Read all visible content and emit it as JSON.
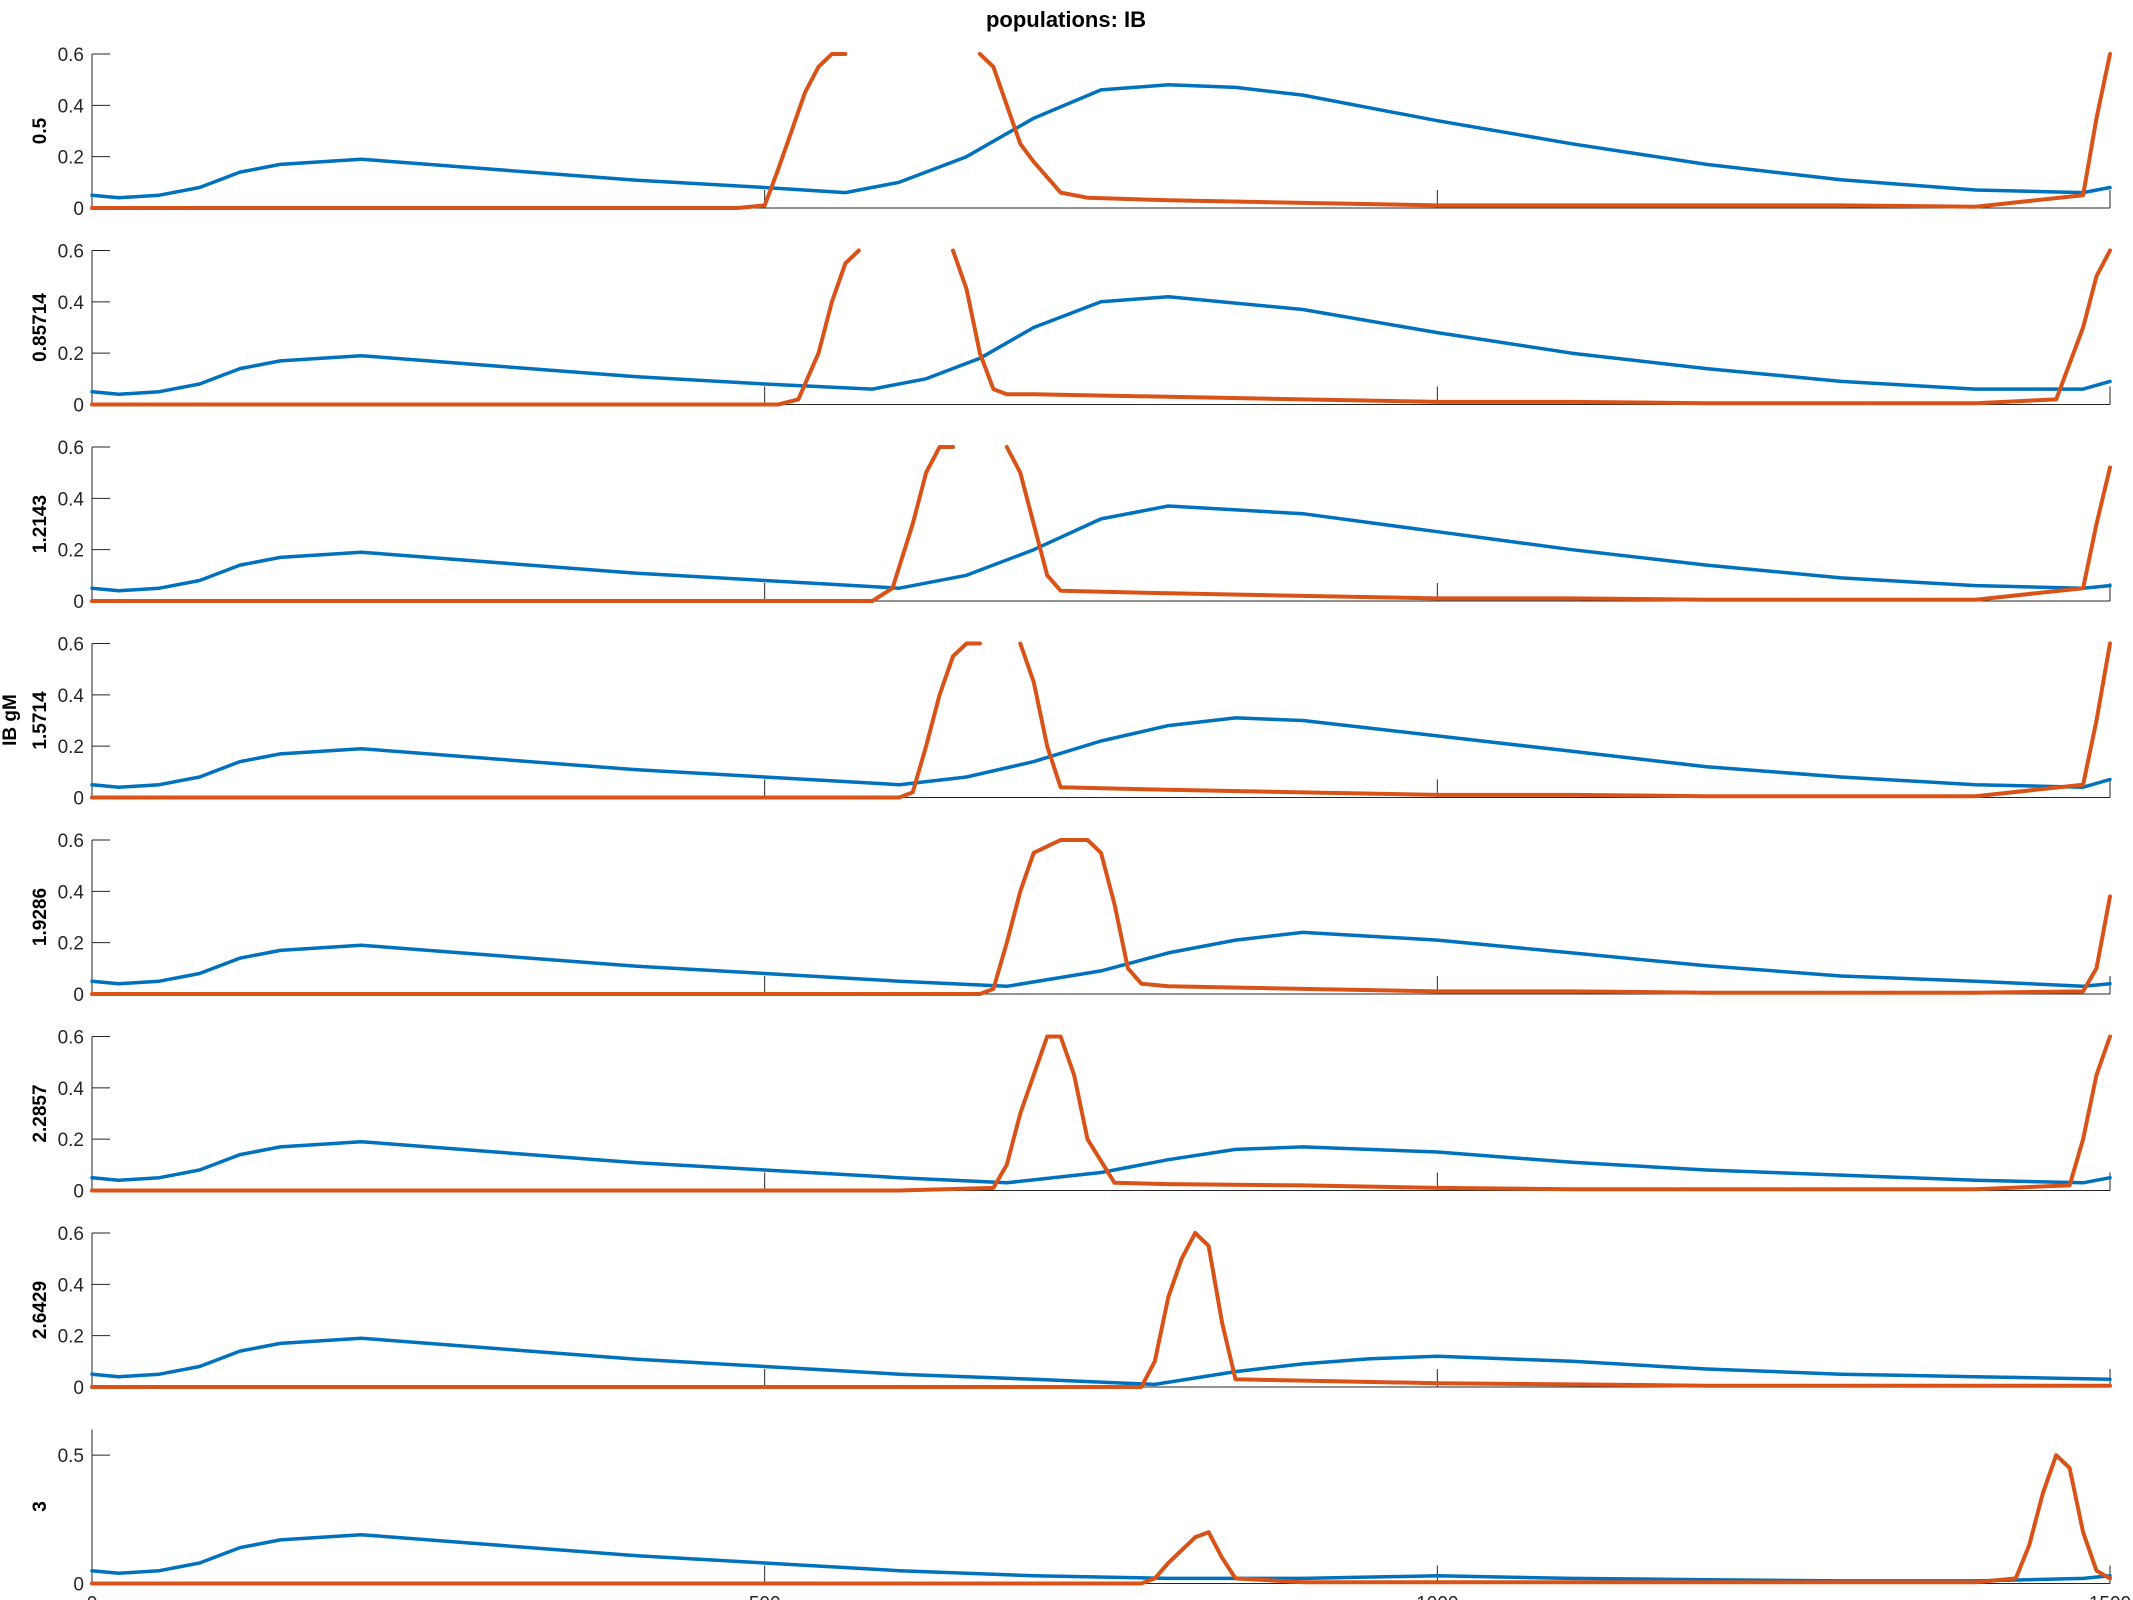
{
  "chart_data": {
    "type": "line",
    "title": "populations: IB",
    "group_ylabel": "IB gM",
    "xlim": [
      0,
      1500
    ],
    "x_ticks": [
      0,
      500,
      1000,
      1500
    ],
    "grid": false,
    "legend": "none",
    "colors": {
      "series_1": "#0072BD",
      "series_2": "#D95319",
      "axis": "#262626"
    },
    "panels": [
      {
        "label": "0.5",
        "ylim": [
          0,
          0.6
        ],
        "y_ticks": [
          0,
          0.2,
          0.4,
          0.6
        ],
        "series": [
          {
            "x": [
              0,
              20,
              50,
              80,
              110,
              140,
              200,
              300,
              400,
              500,
              560,
              600,
              650,
              700,
              750,
              800,
              850,
              900,
              1000,
              1100,
              1200,
              1300,
              1400,
              1480,
              1500
            ],
            "y": [
              0.05,
              0.04,
              0.05,
              0.08,
              0.14,
              0.17,
              0.19,
              0.15,
              0.11,
              0.08,
              0.06,
              0.1,
              0.2,
              0.35,
              0.46,
              0.48,
              0.47,
              0.44,
              0.34,
              0.25,
              0.17,
              0.11,
              0.07,
              0.06,
              0.08
            ]
          },
          {
            "x": [
              0,
              100,
              200,
              300,
              400,
              480,
              500,
              510,
              520,
              530,
              540,
              550,
              560,
              600,
              640,
              660,
              670,
              680,
              690,
              700,
              710,
              720,
              740,
              800,
              900,
              1000,
              1100,
              1200,
              1300,
              1400,
              1480,
              1490,
              1500
            ],
            "y": [
              0,
              0,
              0,
              0,
              0,
              0,
              0.01,
              0.15,
              0.3,
              0.45,
              0.55,
              0.6,
              0.6,
              null,
              null,
              0.6,
              0.55,
              0.4,
              0.25,
              0.18,
              0.12,
              0.06,
              0.04,
              0.03,
              0.02,
              0.01,
              0.01,
              0.01,
              0.01,
              0.005,
              0.05,
              0.35,
              0.6
            ]
          }
        ]
      },
      {
        "label": "0.85714",
        "ylim": [
          0,
          0.6
        ],
        "y_ticks": [
          0,
          0.2,
          0.4,
          0.6
        ],
        "series": [
          {
            "x": [
              0,
              20,
              50,
              80,
              110,
              140,
              200,
              300,
              400,
              500,
              580,
              620,
              660,
              700,
              750,
              800,
              900,
              1000,
              1100,
              1200,
              1300,
              1400,
              1480,
              1500
            ],
            "y": [
              0.05,
              0.04,
              0.05,
              0.08,
              0.14,
              0.17,
              0.19,
              0.15,
              0.11,
              0.08,
              0.06,
              0.1,
              0.18,
              0.3,
              0.4,
              0.42,
              0.37,
              0.28,
              0.2,
              0.14,
              0.09,
              0.06,
              0.06,
              0.09
            ]
          },
          {
            "x": [
              0,
              100,
              200,
              300,
              400,
              510,
              525,
              540,
              550,
              560,
              570,
              600,
              640,
              650,
              660,
              670,
              680,
              700,
              800,
              900,
              1000,
              1100,
              1200,
              1300,
              1400,
              1460,
              1480,
              1490,
              1500
            ],
            "y": [
              0,
              0,
              0,
              0,
              0,
              0,
              0.02,
              0.2,
              0.4,
              0.55,
              0.6,
              null,
              0.6,
              0.45,
              0.2,
              0.06,
              0.04,
              0.04,
              0.03,
              0.02,
              0.01,
              0.01,
              0.005,
              0.005,
              0.005,
              0.02,
              0.3,
              0.5,
              0.6
            ]
          }
        ]
      },
      {
        "label": "1.2143",
        "ylim": [
          0,
          0.6
        ],
        "y_ticks": [
          0,
          0.2,
          0.4,
          0.6
        ],
        "series": [
          {
            "x": [
              0,
              20,
              50,
              80,
              110,
              140,
              200,
              300,
              400,
              500,
              600,
              650,
              700,
              750,
              800,
              900,
              1000,
              1100,
              1200,
              1300,
              1400,
              1480,
              1500
            ],
            "y": [
              0.05,
              0.04,
              0.05,
              0.08,
              0.14,
              0.17,
              0.19,
              0.15,
              0.11,
              0.08,
              0.05,
              0.1,
              0.2,
              0.32,
              0.37,
              0.34,
              0.27,
              0.2,
              0.14,
              0.09,
              0.06,
              0.05,
              0.06
            ]
          },
          {
            "x": [
              0,
              100,
              200,
              300,
              400,
              500,
              580,
              595,
              610,
              620,
              630,
              640,
              650,
              670,
              680,
              690,
              700,
              710,
              720,
              800,
              900,
              1000,
              1100,
              1200,
              1300,
              1400,
              1480,
              1490,
              1500
            ],
            "y": [
              0,
              0,
              0,
              0,
              0,
              0,
              0,
              0.05,
              0.3,
              0.5,
              0.6,
              0.6,
              null,
              null,
              0.6,
              0.5,
              0.3,
              0.1,
              0.04,
              0.03,
              0.02,
              0.01,
              0.01,
              0.005,
              0.005,
              0.005,
              0.05,
              0.3,
              0.52
            ]
          }
        ]
      },
      {
        "label": "1.5714",
        "ylim": [
          0,
          0.6
        ],
        "y_ticks": [
          0,
          0.2,
          0.4,
          0.6
        ],
        "series": [
          {
            "x": [
              0,
              20,
              50,
              80,
              110,
              140,
              200,
              300,
              400,
              500,
              600,
              650,
              700,
              750,
              800,
              850,
              900,
              1000,
              1100,
              1200,
              1300,
              1400,
              1480,
              1500
            ],
            "y": [
              0.05,
              0.04,
              0.05,
              0.08,
              0.14,
              0.17,
              0.19,
              0.15,
              0.11,
              0.08,
              0.05,
              0.08,
              0.14,
              0.22,
              0.28,
              0.31,
              0.3,
              0.24,
              0.18,
              0.12,
              0.08,
              0.05,
              0.04,
              0.07
            ]
          },
          {
            "x": [
              0,
              100,
              200,
              300,
              400,
              500,
              600,
              610,
              620,
              630,
              640,
              650,
              660,
              680,
              690,
              700,
              710,
              720,
              800,
              900,
              1000,
              1100,
              1200,
              1300,
              1400,
              1480,
              1490,
              1500
            ],
            "y": [
              0,
              0,
              0,
              0,
              0,
              0,
              0,
              0.02,
              0.2,
              0.4,
              0.55,
              0.6,
              0.6,
              null,
              0.6,
              0.45,
              0.2,
              0.04,
              0.03,
              0.02,
              0.01,
              0.01,
              0.005,
              0.005,
              0.005,
              0.05,
              0.3,
              0.6
            ]
          }
        ]
      },
      {
        "label": "1.9286",
        "ylim": [
          0,
          0.6
        ],
        "y_ticks": [
          0,
          0.2,
          0.4,
          0.6
        ],
        "series": [
          {
            "x": [
              0,
              20,
              50,
              80,
              110,
              140,
              200,
              300,
              400,
              500,
              600,
              680,
              750,
              800,
              850,
              900,
              1000,
              1100,
              1200,
              1300,
              1400,
              1480,
              1500
            ],
            "y": [
              0.05,
              0.04,
              0.05,
              0.08,
              0.14,
              0.17,
              0.19,
              0.15,
              0.11,
              0.08,
              0.05,
              0.03,
              0.09,
              0.16,
              0.21,
              0.24,
              0.21,
              0.16,
              0.11,
              0.07,
              0.05,
              0.03,
              0.04
            ]
          },
          {
            "x": [
              0,
              100,
              200,
              300,
              400,
              500,
              600,
              660,
              670,
              680,
              690,
              700,
              720,
              740,
              750,
              760,
              770,
              780,
              800,
              900,
              1000,
              1100,
              1200,
              1300,
              1400,
              1480,
              1490,
              1500
            ],
            "y": [
              0,
              0,
              0,
              0,
              0,
              0,
              0,
              0,
              0.02,
              0.2,
              0.4,
              0.55,
              0.6,
              0.6,
              0.55,
              0.35,
              0.1,
              0.04,
              0.03,
              0.02,
              0.01,
              0.01,
              0.005,
              0.005,
              0.005,
              0.01,
              0.1,
              0.38
            ]
          }
        ]
      },
      {
        "label": "2.2857",
        "ylim": [
          0,
          0.6
        ],
        "y_ticks": [
          0,
          0.2,
          0.4,
          0.6
        ],
        "series": [
          {
            "x": [
              0,
              20,
              50,
              80,
              110,
              140,
              200,
              300,
              400,
              500,
              600,
              680,
              750,
              800,
              850,
              900,
              1000,
              1100,
              1200,
              1300,
              1400,
              1480,
              1500
            ],
            "y": [
              0.05,
              0.04,
              0.05,
              0.08,
              0.14,
              0.17,
              0.19,
              0.15,
              0.11,
              0.08,
              0.05,
              0.03,
              0.07,
              0.12,
              0.16,
              0.17,
              0.15,
              0.11,
              0.08,
              0.06,
              0.04,
              0.03,
              0.05
            ]
          },
          {
            "x": [
              0,
              100,
              200,
              300,
              400,
              500,
              600,
              670,
              680,
              690,
              700,
              710,
              720,
              730,
              740,
              760,
              800,
              900,
              1000,
              1100,
              1200,
              1300,
              1400,
              1470,
              1480,
              1490,
              1500
            ],
            "y": [
              0,
              0,
              0,
              0,
              0,
              0,
              0,
              0.01,
              0.1,
              0.3,
              0.45,
              0.6,
              0.6,
              0.45,
              0.2,
              0.03,
              0.025,
              0.02,
              0.01,
              0.005,
              0.005,
              0.005,
              0.005,
              0.02,
              0.2,
              0.45,
              0.6
            ]
          }
        ]
      },
      {
        "label": "2.6429",
        "ylim": [
          0,
          0.6
        ],
        "y_ticks": [
          0,
          0.2,
          0.4,
          0.6
        ],
        "series": [
          {
            "x": [
              0,
              20,
              50,
              80,
              110,
              140,
              200,
              300,
              400,
              500,
              600,
              700,
              790,
              850,
              900,
              950,
              1000,
              1100,
              1200,
              1300,
              1400,
              1500
            ],
            "y": [
              0.05,
              0.04,
              0.05,
              0.08,
              0.14,
              0.17,
              0.19,
              0.15,
              0.11,
              0.08,
              0.05,
              0.03,
              0.01,
              0.06,
              0.09,
              0.11,
              0.12,
              0.1,
              0.07,
              0.05,
              0.04,
              0.03
            ]
          },
          {
            "x": [
              0,
              100,
              200,
              300,
              400,
              500,
              600,
              700,
              780,
              790,
              800,
              810,
              820,
              830,
              840,
              850,
              900,
              1000,
              1100,
              1200,
              1300,
              1400,
              1500
            ],
            "y": [
              0,
              0,
              0,
              0,
              0,
              0,
              0,
              0,
              0,
              0.1,
              0.35,
              0.5,
              0.6,
              0.55,
              0.25,
              0.03,
              0.025,
              0.015,
              0.01,
              0.005,
              0.005,
              0.005,
              0.005
            ]
          }
        ]
      },
      {
        "label": "3",
        "ylim": [
          0,
          0.6
        ],
        "y_ticks": [
          0,
          0.5
        ],
        "series": [
          {
            "x": [
              0,
              20,
              50,
              80,
              110,
              140,
              200,
              300,
              400,
              500,
              600,
              700,
              800,
              900,
              1000,
              1100,
              1200,
              1300,
              1400,
              1480,
              1500
            ],
            "y": [
              0.05,
              0.04,
              0.05,
              0.08,
              0.14,
              0.17,
              0.19,
              0.15,
              0.11,
              0.08,
              0.05,
              0.03,
              0.02,
              0.02,
              0.03,
              0.02,
              0.015,
              0.01,
              0.01,
              0.02,
              0.03
            ]
          },
          {
            "x": [
              0,
              100,
              200,
              300,
              400,
              500,
              600,
              700,
              780,
              790,
              800,
              820,
              830,
              840,
              850,
              900,
              1000,
              1100,
              1200,
              1300,
              1400,
              1430,
              1440,
              1450,
              1460,
              1470,
              1480,
              1490,
              1500
            ],
            "y": [
              0,
              0,
              0,
              0,
              0,
              0,
              0,
              0,
              0,
              0.02,
              0.08,
              0.18,
              0.2,
              0.1,
              0.02,
              0.005,
              0.005,
              0.005,
              0.005,
              0.005,
              0.005,
              0.02,
              0.15,
              0.35,
              0.5,
              0.45,
              0.2,
              0.05,
              0.02
            ]
          }
        ]
      }
    ]
  }
}
